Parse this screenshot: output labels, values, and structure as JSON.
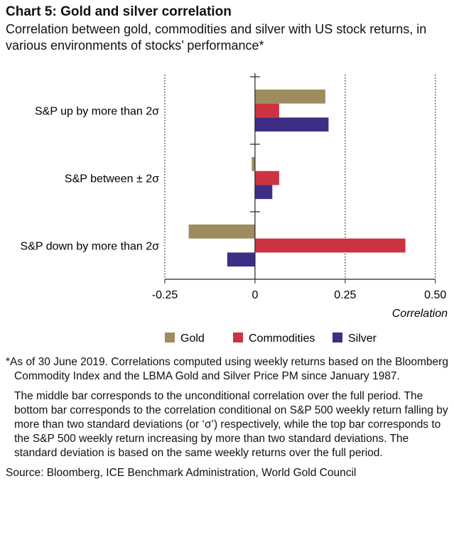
{
  "title": "Chart 5: Gold and silver correlation",
  "subtitle": "Correlation between gold, commodities and silver with US stock returns, in various environments of stocks’ performance*",
  "chart_data": {
    "type": "bar",
    "orientation": "horizontal",
    "categories": [
      "S&P up by more than 2σ",
      "S&P between ± 2σ",
      "S&P down by more than 2σ"
    ],
    "series": [
      {
        "name": "Gold",
        "color": "#9e8c5e",
        "values": [
          0.195,
          -0.009,
          -0.184
        ]
      },
      {
        "name": "Commodities",
        "color": "#cc3341",
        "values": [
          0.067,
          0.067,
          0.417
        ]
      },
      {
        "name": "Silver",
        "color": "#3e2d85",
        "values": [
          0.204,
          0.048,
          -0.077
        ]
      }
    ],
    "xlim": [
      -0.25,
      0.5
    ],
    "xticks": [
      -0.25,
      0,
      0.25,
      0.5
    ],
    "xtick_labels": [
      "-0.25",
      "0",
      "0.25",
      "0.50"
    ],
    "xlabel": "Correlation",
    "grid": "vertical dotted",
    "legend_placement": "bottom"
  },
  "notes": {
    "footnote": "*As of 30 June 2019. Correlations computed using weekly returns based on the Bloomberg Commodity Index and the LBMA Gold and Silver Price PM since January 1987.",
    "explanation": "The middle bar corresponds to the unconditional correlation over the full period. The bottom bar corresponds to the correlation conditional on S&P 500 weekly return falling by more than two standard deviations (or ‘σ’) respectively, while the top bar corresponds to the S&P 500 weekly return increasing by more than two standard deviations. The standard deviation is based on the same weekly returns over the full period.",
    "source": "Source: Bloomberg, ICE Benchmark Administration, World Gold Council"
  }
}
